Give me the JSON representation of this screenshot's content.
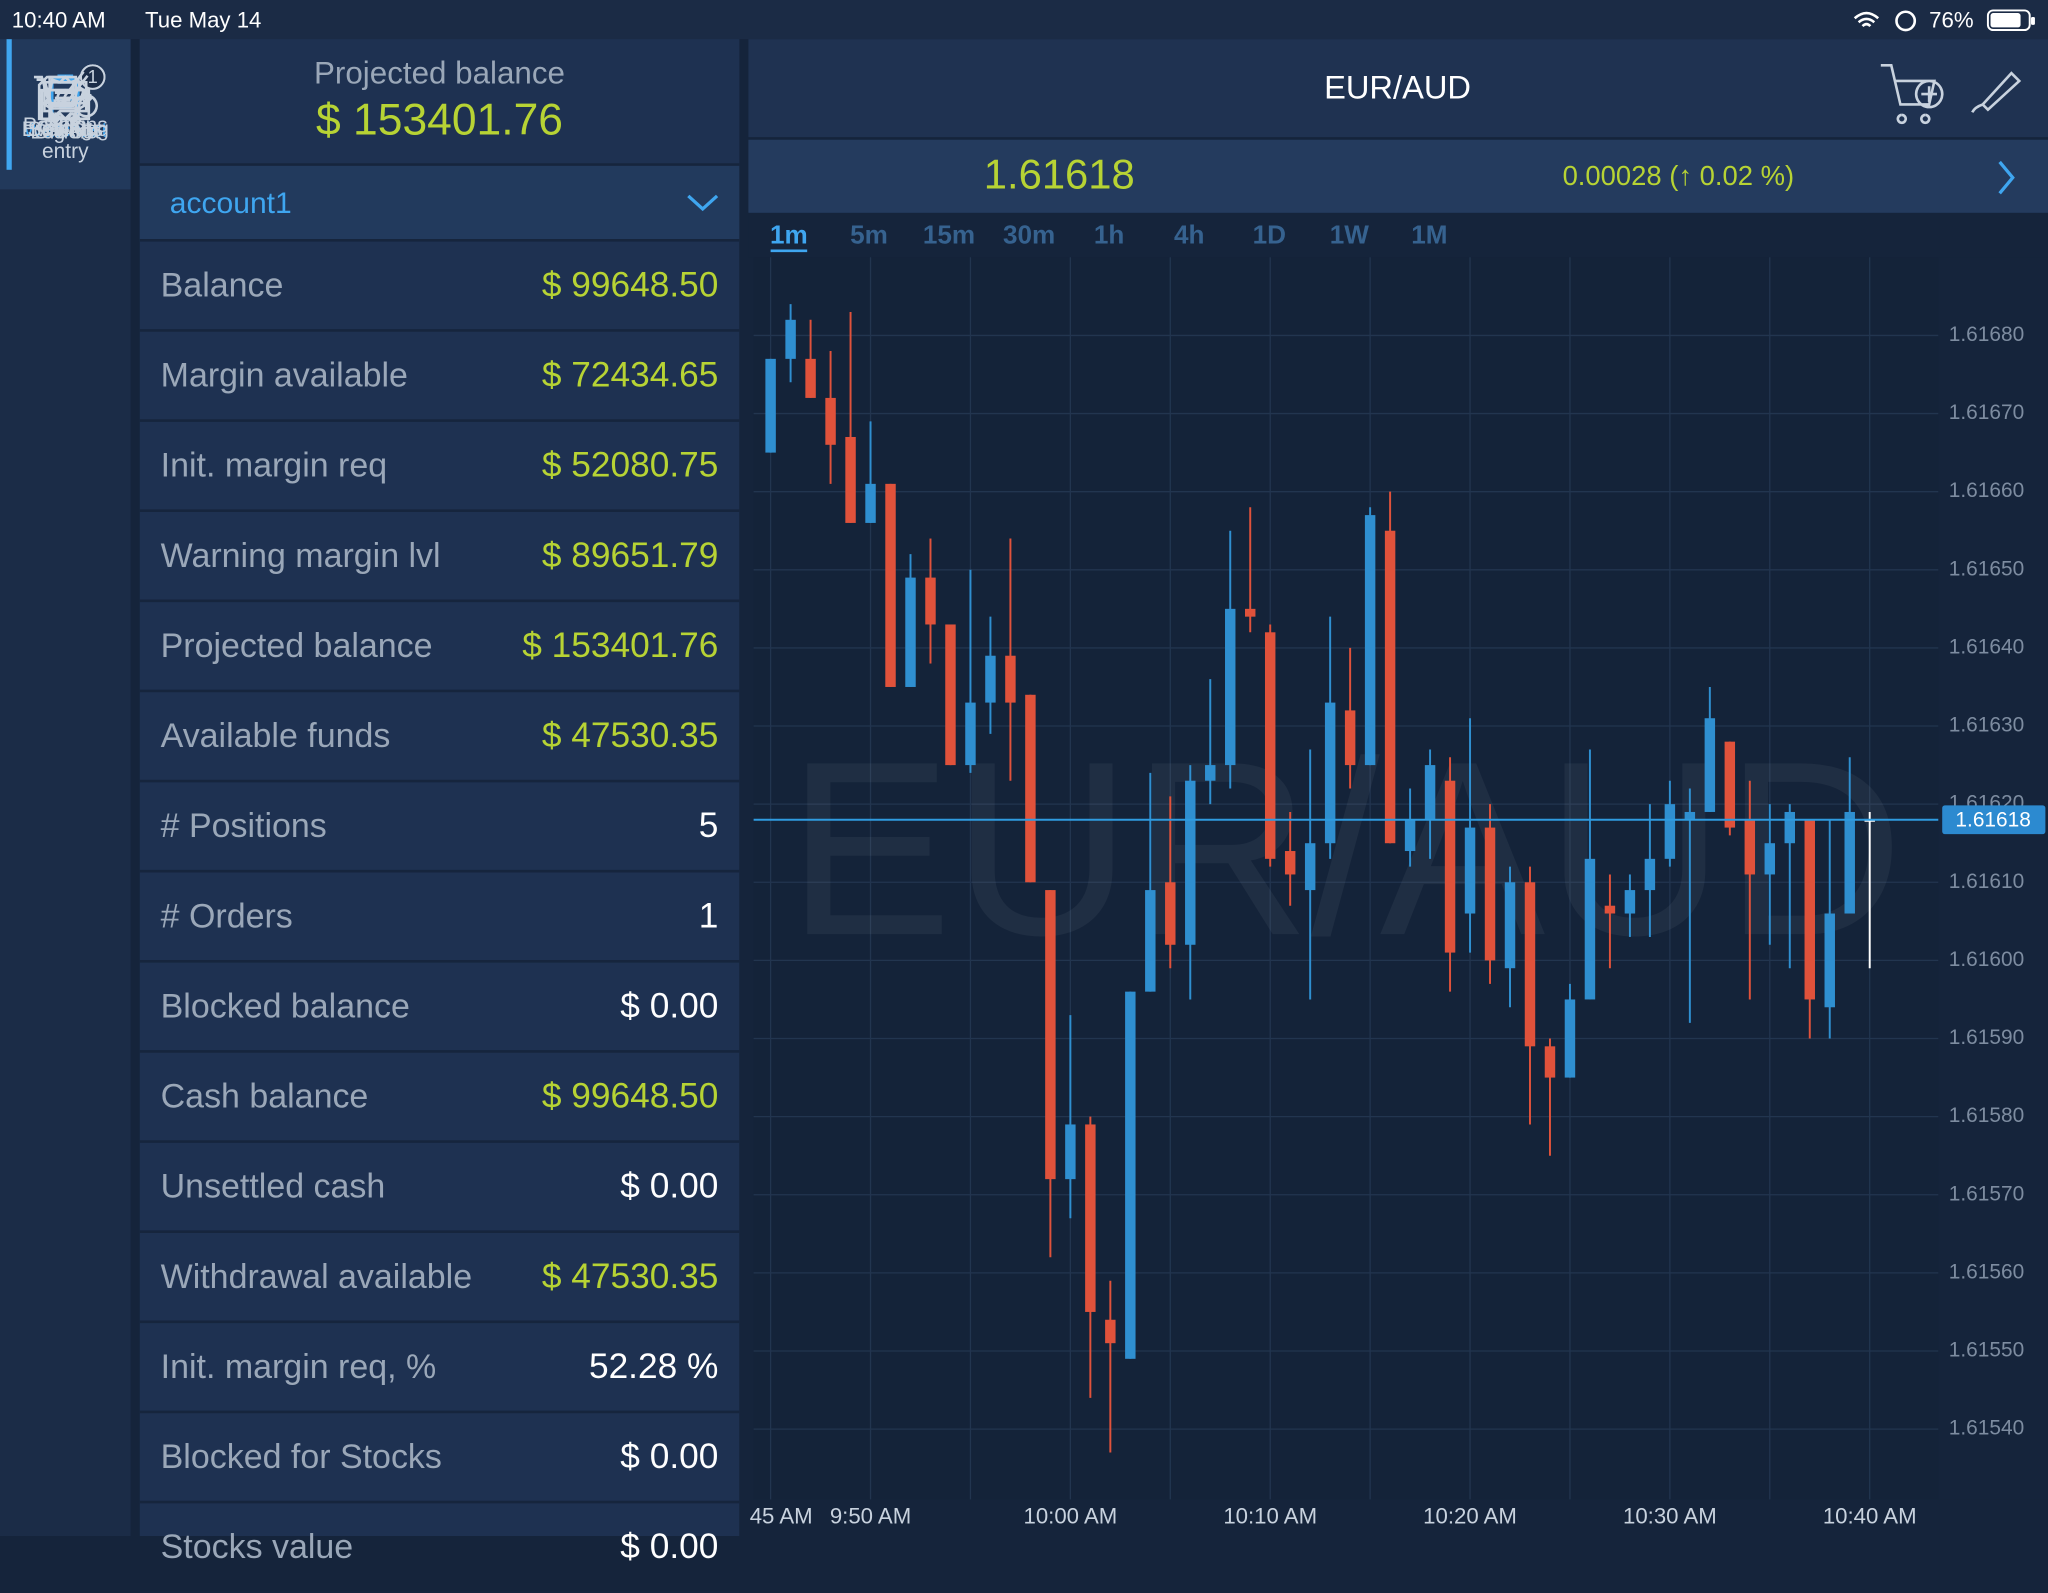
{
  "status_bar": {
    "time": "10:40 AM",
    "date": "Tue May 14",
    "battery": "76%"
  },
  "nav": [
    {
      "label": "Watchlist",
      "active": true
    },
    {
      "label": "Positions",
      "badge": 5
    },
    {
      "label": "Orders",
      "badge": 1
    },
    {
      "label": "Order entry"
    },
    {
      "label": "Settings"
    },
    {
      "label": "Event log"
    },
    {
      "label": "Help"
    },
    {
      "label": "Log out"
    }
  ],
  "account": {
    "projected_label": "Projected balance",
    "projected_value": "$ 153401.76",
    "name": "account1",
    "rows": [
      {
        "label": "Balance",
        "value": "$ 99648.50",
        "color": "#b7d334"
      },
      {
        "label": "Margin available",
        "value": "$ 72434.65",
        "color": "#b7d334"
      },
      {
        "label": "Init. margin req",
        "value": "$ 52080.75",
        "color": "#b7d334"
      },
      {
        "label": "Warning margin lvl",
        "value": "$ 89651.79",
        "color": "#b7d334"
      },
      {
        "label": "Projected balance",
        "value": "$ 153401.76",
        "color": "#b7d334"
      },
      {
        "label": "Available funds",
        "value": "$ 47530.35",
        "color": "#b7d334"
      },
      {
        "label": "# Positions",
        "value": "5",
        "color": "#ffffff"
      },
      {
        "label": "# Orders",
        "value": "1",
        "color": "#ffffff"
      },
      {
        "label": "Blocked balance",
        "value": "$ 0.00",
        "color": "#ffffff"
      },
      {
        "label": "Cash balance",
        "value": "$ 99648.50",
        "color": "#b7d334"
      },
      {
        "label": "Unsettled cash",
        "value": "$ 0.00",
        "color": "#ffffff"
      },
      {
        "label": "Withdrawal available",
        "value": "$ 47530.35",
        "color": "#b7d334"
      },
      {
        "label": "Init. margin req, %",
        "value": "52.28 %",
        "color": "#ffffff"
      },
      {
        "label": "Blocked for Stocks",
        "value": "$ 0.00",
        "color": "#ffffff"
      },
      {
        "label": "Stocks value",
        "value": "$ 0.00",
        "color": "#ffffff"
      }
    ]
  },
  "chart": {
    "type": "candlestick",
    "symbol": "EUR/AUD",
    "price": 1.61618,
    "change": "0.00028 (↑ 0.02 %)",
    "timeframes": [
      "1m",
      "5m",
      "15m",
      "30m",
      "1h",
      "4h",
      "1D",
      "1W",
      "1M"
    ],
    "active_timeframe": 0,
    "ylim": [
      1.61531,
      1.6169
    ],
    "yticks": [
      {
        "value": 1.6168,
        "label": "1.61680"
      },
      {
        "value": 1.6167,
        "label": "1.61670"
      },
      {
        "value": 1.6166,
        "label": "1.61660"
      },
      {
        "value": 1.6165,
        "label": "1.61650"
      },
      {
        "value": 1.6164,
        "label": "1.61640"
      },
      {
        "value": 1.6163,
        "label": "1.61630"
      },
      {
        "value": 1.6162,
        "label": "1.61620"
      },
      {
        "value": 1.6161,
        "label": "1.61610"
      },
      {
        "value": 1.616,
        "label": "1.61600"
      },
      {
        "value": 1.6159,
        "label": "1.61590"
      },
      {
        "value": 1.6158,
        "label": "1.61580"
      },
      {
        "value": 1.6157,
        "label": "1.61570"
      },
      {
        "value": 1.6156,
        "label": "1.61560"
      },
      {
        "value": 1.6155,
        "label": "1.61550"
      },
      {
        "value": 1.6154,
        "label": "1.61540"
      }
    ],
    "xlabels": [
      "45 AM",
      "9:50 AM",
      "10:00 AM",
      "10:10 AM",
      "10:20 AM",
      "10:30 AM",
      "10:40 AM"
    ],
    "up_color": "#2f8fd0",
    "down_color": "#e0523b",
    "flat_color": "#ffffff",
    "candles": [
      {
        "open": 1.61665,
        "high": 1.61677,
        "low": 1.61665,
        "close": 1.61677
      },
      {
        "open": 1.61677,
        "high": 1.61684,
        "low": 1.61674,
        "close": 1.61682
      },
      {
        "open": 1.61677,
        "high": 1.61682,
        "low": 1.61672,
        "close": 1.61672
      },
      {
        "open": 1.61672,
        "high": 1.61678,
        "low": 1.61661,
        "close": 1.61666
      },
      {
        "open": 1.61667,
        "high": 1.61683,
        "low": 1.61656,
        "close": 1.61656
      },
      {
        "open": 1.61656,
        "high": 1.61669,
        "low": 1.61656,
        "close": 1.61661
      },
      {
        "open": 1.61661,
        "high": 1.61661,
        "low": 1.61635,
        "close": 1.61635
      },
      {
        "open": 1.61635,
        "high": 1.61652,
        "low": 1.61635,
        "close": 1.61649
      },
      {
        "open": 1.61649,
        "high": 1.61654,
        "low": 1.61638,
        "close": 1.61643
      },
      {
        "open": 1.61643,
        "high": 1.61643,
        "low": 1.61625,
        "close": 1.61625
      },
      {
        "open": 1.61625,
        "high": 1.6165,
        "low": 1.61624,
        "close": 1.61633
      },
      {
        "open": 1.61633,
        "high": 1.61644,
        "low": 1.61629,
        "close": 1.61639
      },
      {
        "open": 1.61639,
        "high": 1.61654,
        "low": 1.61623,
        "close": 1.61633
      },
      {
        "open": 1.61634,
        "high": 1.61634,
        "low": 1.6161,
        "close": 1.6161
      },
      {
        "open": 1.61609,
        "high": 1.61609,
        "low": 1.61562,
        "close": 1.61572
      },
      {
        "open": 1.61572,
        "high": 1.61593,
        "low": 1.61567,
        "close": 1.61579
      },
      {
        "open": 1.61579,
        "high": 1.6158,
        "low": 1.61544,
        "close": 1.61555
      },
      {
        "open": 1.61554,
        "high": 1.61559,
        "low": 1.61537,
        "close": 1.61551
      },
      {
        "open": 1.61549,
        "high": 1.61596,
        "low": 1.61549,
        "close": 1.61596
      },
      {
        "open": 1.61596,
        "high": 1.61624,
        "low": 1.61596,
        "close": 1.61609
      },
      {
        "open": 1.6161,
        "high": 1.61621,
        "low": 1.61599,
        "close": 1.61602
      },
      {
        "open": 1.61602,
        "high": 1.61625,
        "low": 1.61595,
        "close": 1.61623
      },
      {
        "open": 1.61623,
        "high": 1.61636,
        "low": 1.6162,
        "close": 1.61625
      },
      {
        "open": 1.61625,
        "high": 1.61655,
        "low": 1.61622,
        "close": 1.61645
      },
      {
        "open": 1.61645,
        "high": 1.61658,
        "low": 1.61642,
        "close": 1.61644
      },
      {
        "open": 1.61642,
        "high": 1.61643,
        "low": 1.61612,
        "close": 1.61613
      },
      {
        "open": 1.61614,
        "high": 1.61619,
        "low": 1.61607,
        "close": 1.61611
      },
      {
        "open": 1.61609,
        "high": 1.61627,
        "low": 1.61595,
        "close": 1.61615
      },
      {
        "open": 1.61615,
        "high": 1.61644,
        "low": 1.61613,
        "close": 1.61633
      },
      {
        "open": 1.61632,
        "high": 1.6164,
        "low": 1.61622,
        "close": 1.61625
      },
      {
        "open": 1.61625,
        "high": 1.61658,
        "low": 1.61625,
        "close": 1.61657
      },
      {
        "open": 1.61655,
        "high": 1.6166,
        "low": 1.61615,
        "close": 1.61615
      },
      {
        "open": 1.61614,
        "high": 1.61622,
        "low": 1.61612,
        "close": 1.61618
      },
      {
        "open": 1.61618,
        "high": 1.61627,
        "low": 1.61613,
        "close": 1.61625
      },
      {
        "open": 1.61623,
        "high": 1.61626,
        "low": 1.61596,
        "close": 1.61601
      },
      {
        "open": 1.61606,
        "high": 1.61631,
        "low": 1.61601,
        "close": 1.61617
      },
      {
        "open": 1.61617,
        "high": 1.6162,
        "low": 1.61597,
        "close": 1.616
      },
      {
        "open": 1.61599,
        "high": 1.61612,
        "low": 1.61594,
        "close": 1.6161
      },
      {
        "open": 1.6161,
        "high": 1.61612,
        "low": 1.61579,
        "close": 1.61589
      },
      {
        "open": 1.61589,
        "high": 1.6159,
        "low": 1.61575,
        "close": 1.61585
      },
      {
        "open": 1.61585,
        "high": 1.61597,
        "low": 1.61585,
        "close": 1.61595
      },
      {
        "open": 1.61595,
        "high": 1.61627,
        "low": 1.61595,
        "close": 1.61613
      },
      {
        "open": 1.61607,
        "high": 1.61611,
        "low": 1.61599,
        "close": 1.61606
      },
      {
        "open": 1.61606,
        "high": 1.61611,
        "low": 1.61603,
        "close": 1.61609
      },
      {
        "open": 1.61609,
        "high": 1.6162,
        "low": 1.61603,
        "close": 1.61613
      },
      {
        "open": 1.61613,
        "high": 1.61623,
        "low": 1.61612,
        "close": 1.6162
      },
      {
        "open": 1.61618,
        "high": 1.61622,
        "low": 1.61592,
        "close": 1.61619
      },
      {
        "open": 1.61619,
        "high": 1.61635,
        "low": 1.61619,
        "close": 1.61631
      },
      {
        "open": 1.61628,
        "high": 1.61628,
        "low": 1.61616,
        "close": 1.61617
      },
      {
        "open": 1.61618,
        "high": 1.61623,
        "low": 1.61595,
        "close": 1.61611
      },
      {
        "open": 1.61611,
        "high": 1.6162,
        "low": 1.61602,
        "close": 1.61615
      },
      {
        "open": 1.61615,
        "high": 1.6162,
        "low": 1.61599,
        "close": 1.61619
      },
      {
        "open": 1.61618,
        "high": 1.61618,
        "low": 1.6159,
        "close": 1.61595
      },
      {
        "open": 1.61594,
        "high": 1.61618,
        "low": 1.6159,
        "close": 1.61606
      },
      {
        "open": 1.61606,
        "high": 1.61626,
        "low": 1.61606,
        "close": 1.61619
      },
      {
        "open": 1.61618,
        "high": 1.61619,
        "low": 1.61599,
        "close": 1.61618
      }
    ]
  }
}
